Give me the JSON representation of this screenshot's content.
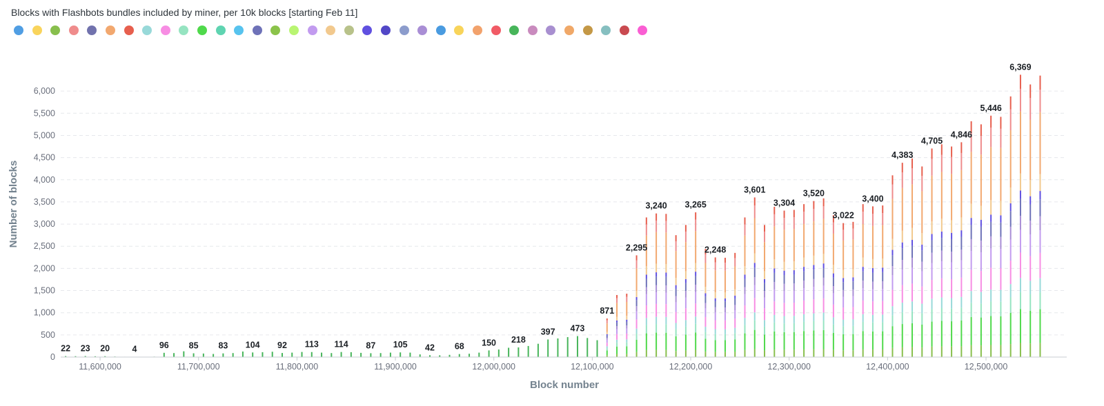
{
  "chart_data": {
    "type": "bar",
    "stacked": true,
    "title": "Blocks with Flashbots bundles included by miner, per 10k blocks [starting Feb 11]",
    "xlabel": "Block number",
    "ylabel": "Number of blocks",
    "ylim": [
      0,
      6500
    ],
    "xlim": [
      11560000,
      11581001
    ],
    "x_display_range": [
      11560000,
      12582000
    ],
    "yticks": [
      0,
      500,
      1000,
      1500,
      2000,
      2500,
      3000,
      3500,
      4000,
      4500,
      5000,
      5500,
      6000
    ],
    "ytick_labels": [
      "0",
      "500",
      "1,000",
      "1,500",
      "2,000",
      "2,500",
      "3,000",
      "3,500",
      "4,000",
      "4,500",
      "5,000",
      "5,500",
      "6,000"
    ],
    "xticks": [
      11600000,
      11700000,
      11800000,
      11900000,
      12000000,
      12100000,
      12200000,
      12300000,
      12400000,
      12500000
    ],
    "xtick_labels": [
      "11,600,000",
      "11,700,000",
      "11,800,000",
      "11,900,000",
      "12,000,000",
      "12,100,000",
      "12,200,000",
      "12,300,000",
      "12,400,000",
      "12,500,000"
    ],
    "grid": "horizontal-dashed",
    "legend_position": "top-left",
    "legend_colors": [
      "#509ee3",
      "#f9d45c",
      "#88bf4d",
      "#ef8c8c",
      "#7172ad",
      "#f2a86f",
      "#e75f4e",
      "#98d9d9",
      "#f78de3",
      "#96e4c1",
      "#4fd94b",
      "#5fd4b1",
      "#57c3ee",
      "#6e72b8",
      "#8bc34a",
      "#b9f572",
      "#c29bef",
      "#f2c98e",
      "#b8c28a",
      "#6050e0",
      "#5247c7",
      "#8c9ccc",
      "#a98ed5",
      "#4a9be0",
      "#f8d45a",
      "#f2a26c",
      "#f15b66",
      "#47b55a",
      "#c98bbe",
      "#a88fd0",
      "#f0a868",
      "#c49846",
      "#86bfc0",
      "#c94a50",
      "#fa5ed3"
    ],
    "bars": [
      {
        "x": 11565000,
        "total": 22,
        "segments": [
          22
        ],
        "label": "22"
      },
      {
        "x": 11575000,
        "total": 20,
        "segments": [
          20
        ],
        "label": ""
      },
      {
        "x": 11585000,
        "total": 23,
        "segments": [
          23
        ],
        "label": "23"
      },
      {
        "x": 11595000,
        "total": 18,
        "segments": [
          18
        ],
        "label": ""
      },
      {
        "x": 11605000,
        "total": 20,
        "segments": [
          20
        ],
        "label": "20"
      },
      {
        "x": 11615000,
        "total": 12,
        "segments": [
          12
        ],
        "label": ""
      },
      {
        "x": 11625000,
        "total": 8,
        "segments": [
          8
        ],
        "label": ""
      },
      {
        "x": 11635000,
        "total": 4,
        "segments": [
          4
        ],
        "label": "4"
      },
      {
        "x": 11645000,
        "total": 6,
        "segments": [
          6
        ],
        "label": ""
      },
      {
        "x": 11655000,
        "total": 10,
        "segments": [
          10
        ],
        "label": ""
      },
      {
        "x": 11665000,
        "total": 96,
        "segments": [
          96
        ],
        "label": "96"
      },
      {
        "x": 11675000,
        "total": 90,
        "segments": [
          90
        ],
        "label": ""
      },
      {
        "x": 11685000,
        "total": 130,
        "segments": [
          130
        ],
        "label": ""
      },
      {
        "x": 11695000,
        "total": 85,
        "segments": [
          85
        ],
        "label": "85"
      },
      {
        "x": 11705000,
        "total": 80,
        "segments": [
          80
        ],
        "label": ""
      },
      {
        "x": 11715000,
        "total": 70,
        "segments": [
          70
        ],
        "label": ""
      },
      {
        "x": 11725000,
        "total": 83,
        "segments": [
          83
        ],
        "label": "83"
      },
      {
        "x": 11735000,
        "total": 90,
        "segments": [
          90
        ],
        "label": ""
      },
      {
        "x": 11745000,
        "total": 125,
        "segments": [
          125
        ],
        "label": ""
      },
      {
        "x": 11755000,
        "total": 104,
        "segments": [
          104
        ],
        "label": "104"
      },
      {
        "x": 11765000,
        "total": 110,
        "segments": [
          110
        ],
        "label": ""
      },
      {
        "x": 11775000,
        "total": 120,
        "segments": [
          120
        ],
        "label": ""
      },
      {
        "x": 11785000,
        "total": 92,
        "segments": [
          92
        ],
        "label": "92"
      },
      {
        "x": 11795000,
        "total": 100,
        "segments": [
          100
        ],
        "label": ""
      },
      {
        "x": 11805000,
        "total": 115,
        "segments": [
          115
        ],
        "label": ""
      },
      {
        "x": 11815000,
        "total": 113,
        "segments": [
          113
        ],
        "label": "113"
      },
      {
        "x": 11825000,
        "total": 100,
        "segments": [
          100
        ],
        "label": ""
      },
      {
        "x": 11835000,
        "total": 90,
        "segments": [
          90
        ],
        "label": ""
      },
      {
        "x": 11845000,
        "total": 114,
        "segments": [
          114
        ],
        "label": "114"
      },
      {
        "x": 11855000,
        "total": 110,
        "segments": [
          110
        ],
        "label": ""
      },
      {
        "x": 11865000,
        "total": 95,
        "segments": [
          95
        ],
        "label": ""
      },
      {
        "x": 11875000,
        "total": 87,
        "segments": [
          87
        ],
        "label": "87"
      },
      {
        "x": 11885000,
        "total": 90,
        "segments": [
          90
        ],
        "label": ""
      },
      {
        "x": 11895000,
        "total": 100,
        "segments": [
          100
        ],
        "label": ""
      },
      {
        "x": 11905000,
        "total": 105,
        "segments": [
          105
        ],
        "label": "105"
      },
      {
        "x": 11915000,
        "total": 100,
        "segments": [
          100
        ],
        "label": ""
      },
      {
        "x": 11925000,
        "total": 60,
        "segments": [
          60
        ],
        "label": ""
      },
      {
        "x": 11935000,
        "total": 42,
        "segments": [
          42
        ],
        "label": "42"
      },
      {
        "x": 11945000,
        "total": 40,
        "segments": [
          40
        ],
        "label": ""
      },
      {
        "x": 11955000,
        "total": 50,
        "segments": [
          50
        ],
        "label": ""
      },
      {
        "x": 11965000,
        "total": 68,
        "segments": [
          68
        ],
        "label": "68"
      },
      {
        "x": 11975000,
        "total": 75,
        "segments": [
          75
        ],
        "label": ""
      },
      {
        "x": 11985000,
        "total": 100,
        "segments": [
          100
        ],
        "label": ""
      },
      {
        "x": 11995000,
        "total": 150,
        "segments": [
          150
        ],
        "label": "150"
      },
      {
        "x": 12005000,
        "total": 170,
        "segments": [
          170
        ],
        "label": ""
      },
      {
        "x": 12015000,
        "total": 210,
        "segments": [
          210
        ],
        "label": ""
      },
      {
        "x": 12025000,
        "total": 218,
        "segments": [
          218
        ],
        "label": "218"
      },
      {
        "x": 12035000,
        "total": 250,
        "segments": [
          250
        ],
        "label": ""
      },
      {
        "x": 12045000,
        "total": 300,
        "segments": [
          300
        ],
        "label": ""
      },
      {
        "x": 12055000,
        "total": 397,
        "segments": [
          397
        ],
        "label": "397"
      },
      {
        "x": 12065000,
        "total": 420,
        "segments": [
          420
        ],
        "label": ""
      },
      {
        "x": 12075000,
        "total": 450,
        "segments": [
          450
        ],
        "label": ""
      },
      {
        "x": 12085000,
        "total": 473,
        "segments": [
          473
        ],
        "label": "473"
      },
      {
        "x": 12095000,
        "total": 430,
        "segments": [
          430
        ],
        "label": ""
      },
      {
        "x": 12105000,
        "total": 380,
        "segments": [
          380
        ],
        "label": ""
      },
      {
        "x": 12115000,
        "total": 871,
        "segments": [
          871
        ],
        "label": "871"
      },
      {
        "x": 12125000,
        "total": 1400,
        "segments": [
          1400
        ],
        "label": ""
      },
      {
        "x": 12135000,
        "total": 1430,
        "segments": [
          1430
        ],
        "label": ""
      },
      {
        "x": 12145000,
        "total": 2295,
        "segments": [
          2295
        ],
        "label": "2,295"
      },
      {
        "x": 12155000,
        "total": 3150,
        "segments": [
          3150
        ],
        "label": ""
      },
      {
        "x": 12165000,
        "total": 3240,
        "segments": [
          3240
        ],
        "label": "3,240"
      },
      {
        "x": 12175000,
        "total": 3230,
        "segments": [
          3230
        ],
        "label": ""
      },
      {
        "x": 12185000,
        "total": 2750,
        "segments": [
          2750
        ],
        "label": ""
      },
      {
        "x": 12195000,
        "total": 2980,
        "segments": [
          2980
        ],
        "label": ""
      },
      {
        "x": 12205000,
        "total": 3265,
        "segments": [
          3265
        ],
        "label": "3,265"
      },
      {
        "x": 12215000,
        "total": 2440,
        "segments": [
          2440
        ],
        "label": ""
      },
      {
        "x": 12225000,
        "total": 2248,
        "segments": [
          2248
        ],
        "label": "2,248"
      },
      {
        "x": 12235000,
        "total": 2240,
        "segments": [
          2240
        ],
        "label": ""
      },
      {
        "x": 12245000,
        "total": 2350,
        "segments": [
          2350
        ],
        "label": ""
      },
      {
        "x": 12255000,
        "total": 3150,
        "segments": [
          3150
        ],
        "label": ""
      },
      {
        "x": 12265000,
        "total": 3601,
        "segments": [
          3601
        ],
        "label": "3,601"
      },
      {
        "x": 12275000,
        "total": 2980,
        "segments": [
          2980
        ],
        "label": ""
      },
      {
        "x": 12285000,
        "total": 3390,
        "segments": [
          3390
        ],
        "label": ""
      },
      {
        "x": 12295000,
        "total": 3304,
        "segments": [
          3304
        ],
        "label": "3,304"
      },
      {
        "x": 12305000,
        "total": 3320,
        "segments": [
          3320
        ],
        "label": ""
      },
      {
        "x": 12315000,
        "total": 3450,
        "segments": [
          3450
        ],
        "label": ""
      },
      {
        "x": 12325000,
        "total": 3520,
        "segments": [
          3520
        ],
        "label": "3,520"
      },
      {
        "x": 12335000,
        "total": 3580,
        "segments": [
          3580
        ],
        "label": ""
      },
      {
        "x": 12345000,
        "total": 3200,
        "segments": [
          3200
        ],
        "label": ""
      },
      {
        "x": 12355000,
        "total": 3022,
        "segments": [
          3022
        ],
        "label": "3,022"
      },
      {
        "x": 12365000,
        "total": 3050,
        "segments": [
          3050
        ],
        "label": ""
      },
      {
        "x": 12375000,
        "total": 3450,
        "segments": [
          3450
        ],
        "label": ""
      },
      {
        "x": 12385000,
        "total": 3400,
        "segments": [
          3400
        ],
        "label": "3,400"
      },
      {
        "x": 12395000,
        "total": 3420,
        "segments": [
          3420
        ],
        "label": ""
      },
      {
        "x": 12405000,
        "total": 4100,
        "segments": [
          4100
        ],
        "label": ""
      },
      {
        "x": 12415000,
        "total": 4383,
        "segments": [
          4383
        ],
        "label": "4,383"
      },
      {
        "x": 12425000,
        "total": 4480,
        "segments": [
          4480
        ],
        "label": ""
      },
      {
        "x": 12435000,
        "total": 4300,
        "segments": [
          4300
        ],
        "label": ""
      },
      {
        "x": 12445000,
        "total": 4705,
        "segments": [
          4705
        ],
        "label": "4,705"
      },
      {
        "x": 12455000,
        "total": 4800,
        "segments": [
          4800
        ],
        "label": ""
      },
      {
        "x": 12465000,
        "total": 4750,
        "segments": [
          4750
        ],
        "label": ""
      },
      {
        "x": 12475000,
        "total": 4846,
        "segments": [
          4846
        ],
        "label": "4,846"
      },
      {
        "x": 12485000,
        "total": 5320,
        "segments": [
          5320
        ],
        "label": ""
      },
      {
        "x": 12495000,
        "total": 5250,
        "segments": [
          5250
        ],
        "label": ""
      },
      {
        "x": 12505000,
        "total": 5446,
        "segments": [
          5446
        ],
        "label": "5,446"
      },
      {
        "x": 12515000,
        "total": 5420,
        "segments": [
          5420
        ],
        "label": ""
      },
      {
        "x": 12525000,
        "total": 5880,
        "segments": [
          5880
        ],
        "label": ""
      },
      {
        "x": 12535000,
        "total": 6369,
        "segments": [
          6369
        ],
        "label": "6,369"
      },
      {
        "x": 12545000,
        "total": 6150,
        "segments": [
          6150
        ],
        "label": ""
      },
      {
        "x": 12555000,
        "total": 6350,
        "segments": [
          6350
        ],
        "label": ""
      }
    ]
  }
}
